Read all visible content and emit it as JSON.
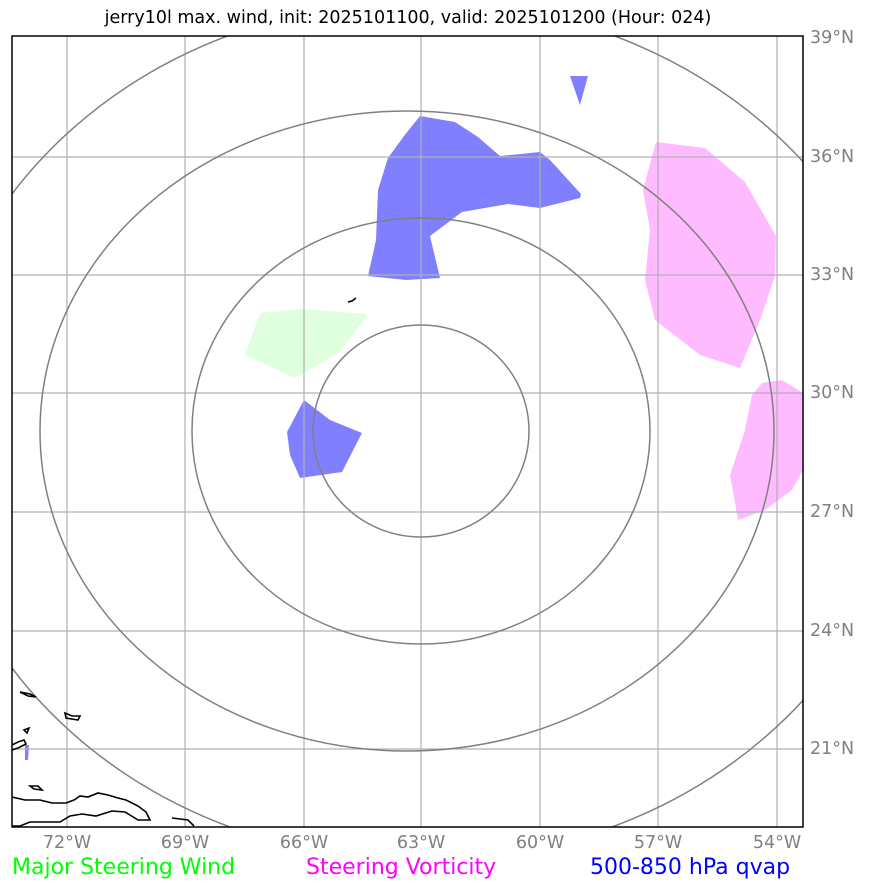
{
  "title": "jerry10l max. wind, init: 2025101100, valid: 2025101200 (Hour: 024)",
  "axes": {
    "lat_ticks": [
      "39°N",
      "36°N",
      "33°N",
      "30°N",
      "27°N",
      "24°N",
      "21°N"
    ],
    "lon_ticks": [
      "72°W",
      "69°W",
      "66°W",
      "63°W",
      "60°W",
      "57°W",
      "54°W"
    ]
  },
  "legend": {
    "wind": {
      "label": "Major Steering Wind",
      "color": "#00ff00"
    },
    "vorticity": {
      "label": "Steering Vorticity",
      "color": "#ff00ff"
    },
    "qvap": {
      "label": "500-850 hPa qvap",
      "color": "#0000ff"
    }
  },
  "colors": {
    "qvap_fill": "#8080ff",
    "vorticity_fill": "#ffbbff",
    "wind_fill": "#dfffdf",
    "grid": "#b0b0b0",
    "rings": "#808080",
    "coast": "#000000"
  }
}
